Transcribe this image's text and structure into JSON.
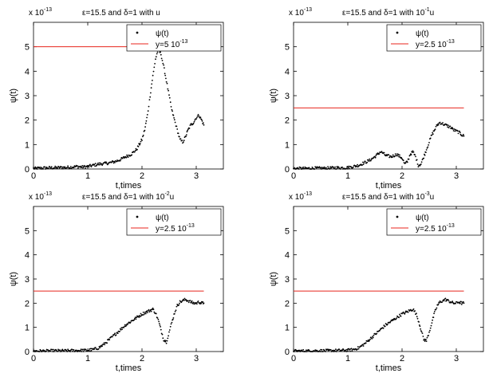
{
  "figure": {
    "background": "#ffffff",
    "marker_color": "#000000",
    "line_color": "#e8241c"
  },
  "chart_data": [
    {
      "type": "scatter",
      "title": "ε=15.5 and δ=1 with u",
      "scale_label": "x 10",
      "scale_exp": "-13",
      "xlabel": "t,times",
      "ylabel": "ψ(t)",
      "xlim": [
        0,
        3.5
      ],
      "ylim": [
        0,
        6
      ],
      "xticks": [
        0,
        1,
        2,
        3
      ],
      "yticks": [
        0,
        1,
        2,
        3,
        4,
        5
      ],
      "grid": false,
      "legend_position": "top-right",
      "series": [
        {
          "name": "ψ(t)",
          "kind": "points",
          "x": [
            0,
            0.1,
            0.2,
            0.3,
            0.4,
            0.5,
            0.6,
            0.7,
            0.8,
            0.9,
            1.0,
            1.1,
            1.2,
            1.3,
            1.4,
            1.5,
            1.6,
            1.7,
            1.8,
            1.9,
            2.0,
            2.05,
            2.1,
            2.15,
            2.2,
            2.25,
            2.3,
            2.35,
            2.4,
            2.45,
            2.5,
            2.55,
            2.6,
            2.65,
            2.7,
            2.75,
            2.8,
            2.85,
            2.9,
            2.95,
            3.0,
            3.05,
            3.1,
            3.14
          ],
          "y": [
            0.02,
            0.03,
            0.04,
            0.05,
            0.05,
            0.06,
            0.06,
            0.08,
            0.1,
            0.08,
            0.1,
            0.15,
            0.2,
            0.22,
            0.25,
            0.3,
            0.38,
            0.5,
            0.6,
            0.8,
            1.2,
            1.6,
            2.2,
            3.0,
            3.8,
            4.5,
            4.9,
            4.7,
            4.2,
            3.6,
            3.0,
            2.4,
            2.0,
            1.6,
            1.2,
            1.1,
            1.3,
            1.6,
            1.8,
            1.9,
            2.1,
            2.2,
            2.0,
            1.8
          ]
        },
        {
          "name": "y=5 10^{-13}",
          "kind": "hline",
          "y": 5,
          "x_range": [
            0,
            3.14
          ]
        }
      ]
    },
    {
      "type": "scatter",
      "title": "ε=15.5 and δ=1 with 10",
      "title_exp": "-1",
      "title_suffix": "u",
      "scale_label": "x 10",
      "scale_exp": "-13",
      "xlabel": "t,times",
      "ylabel": "ψ(t)",
      "xlim": [
        0,
        3.5
      ],
      "ylim": [
        0,
        6
      ],
      "xticks": [
        0,
        1,
        2,
        3
      ],
      "yticks": [
        0,
        1,
        2,
        3,
        4,
        5
      ],
      "grid": false,
      "legend_position": "top-right",
      "series": [
        {
          "name": "ψ(t)",
          "kind": "points",
          "x": [
            0,
            0.2,
            0.4,
            0.6,
            0.8,
            1.0,
            1.1,
            1.2,
            1.3,
            1.4,
            1.5,
            1.55,
            1.6,
            1.65,
            1.7,
            1.8,
            1.9,
            2.0,
            2.05,
            2.1,
            2.15,
            2.2,
            2.25,
            2.3,
            2.35,
            2.4,
            2.45,
            2.5,
            2.55,
            2.6,
            2.65,
            2.7,
            2.75,
            2.8,
            2.85,
            2.9,
            2.95,
            3.0,
            3.05,
            3.1,
            3.14
          ],
          "y": [
            0.02,
            0.02,
            0.03,
            0.03,
            0.05,
            0.05,
            0.1,
            0.15,
            0.25,
            0.35,
            0.5,
            0.6,
            0.7,
            0.65,
            0.55,
            0.5,
            0.6,
            0.45,
            0.2,
            0.3,
            0.6,
            0.7,
            0.5,
            0.15,
            0.2,
            0.5,
            0.8,
            1.1,
            1.4,
            1.6,
            1.8,
            1.9,
            1.85,
            1.8,
            1.75,
            1.7,
            1.6,
            1.55,
            1.5,
            1.4,
            1.35
          ]
        },
        {
          "name": "y=2.5 10^{-13}",
          "kind": "hline",
          "y": 2.5,
          "x_range": [
            0,
            3.14
          ]
        }
      ]
    },
    {
      "type": "scatter",
      "title": "ε=15.5 and δ=1 with 10",
      "title_exp": "-2",
      "title_suffix": "u",
      "scale_label": "x 10",
      "scale_exp": "-13",
      "xlabel": "t,times",
      "ylabel": "ψ(t)",
      "xlim": [
        0,
        3.5
      ],
      "ylim": [
        0,
        6
      ],
      "xticks": [
        0,
        1,
        2,
        3
      ],
      "yticks": [
        0,
        1,
        2,
        3,
        4,
        5
      ],
      "grid": false,
      "legend_position": "top-right",
      "series": [
        {
          "name": "ψ(t)",
          "kind": "points",
          "x": [
            0,
            0.2,
            0.4,
            0.6,
            0.8,
            1.0,
            1.1,
            1.2,
            1.3,
            1.4,
            1.5,
            1.6,
            1.7,
            1.8,
            1.9,
            2.0,
            2.05,
            2.1,
            2.15,
            2.2,
            2.25,
            2.3,
            2.35,
            2.4,
            2.45,
            2.5,
            2.55,
            2.6,
            2.65,
            2.7,
            2.75,
            2.8,
            2.85,
            2.9,
            2.95,
            3.0,
            3.05,
            3.1,
            3.14
          ],
          "y": [
            0.02,
            0.02,
            0.03,
            0.03,
            0.04,
            0.05,
            0.08,
            0.15,
            0.3,
            0.5,
            0.7,
            0.9,
            1.1,
            1.25,
            1.4,
            1.55,
            1.6,
            1.65,
            1.7,
            1.75,
            1.6,
            1.3,
            0.9,
            0.5,
            0.4,
            0.8,
            1.2,
            1.6,
            1.9,
            2.05,
            2.1,
            2.15,
            2.1,
            2.05,
            2.0,
            2.0,
            2.05,
            2.0,
            2.0
          ]
        },
        {
          "name": "y=2.5 10^{-13}",
          "kind": "hline",
          "y": 2.5,
          "x_range": [
            0,
            3.14
          ]
        }
      ]
    },
    {
      "type": "scatter",
      "title": "ε=15.5 and δ=1 with 10",
      "title_exp": "-3",
      "title_suffix": "u",
      "scale_label": "x 10",
      "scale_exp": "-13",
      "xlabel": "t,times",
      "ylabel": "ψ(t)",
      "xlim": [
        0,
        3.5
      ],
      "ylim": [
        0,
        6
      ],
      "xticks": [
        0,
        1,
        2,
        3
      ],
      "yticks": [
        0,
        1,
        2,
        3,
        4,
        5
      ],
      "grid": false,
      "legend_position": "top-right",
      "series": [
        {
          "name": "ψ(t)",
          "kind": "points",
          "x": [
            0,
            0.2,
            0.4,
            0.6,
            0.8,
            1.0,
            1.1,
            1.2,
            1.3,
            1.4,
            1.5,
            1.6,
            1.7,
            1.8,
            1.9,
            2.0,
            2.05,
            2.1,
            2.15,
            2.2,
            2.25,
            2.3,
            2.35,
            2.4,
            2.45,
            2.5,
            2.55,
            2.6,
            2.65,
            2.7,
            2.75,
            2.8,
            2.85,
            2.9,
            2.95,
            3.0,
            3.05,
            3.1,
            3.14
          ],
          "y": [
            0.02,
            0.02,
            0.03,
            0.03,
            0.04,
            0.05,
            0.08,
            0.15,
            0.3,
            0.5,
            0.7,
            0.9,
            1.1,
            1.25,
            1.4,
            1.55,
            1.6,
            1.65,
            1.7,
            1.75,
            1.6,
            1.3,
            0.9,
            0.5,
            0.45,
            0.8,
            1.2,
            1.6,
            1.9,
            2.05,
            2.1,
            2.15,
            2.1,
            2.05,
            2.0,
            2.0,
            2.05,
            2.0,
            2.0
          ]
        },
        {
          "name": "y=2.5 10^{-13}",
          "kind": "hline",
          "y": 2.5,
          "x_range": [
            0,
            3.14
          ]
        }
      ]
    }
  ]
}
